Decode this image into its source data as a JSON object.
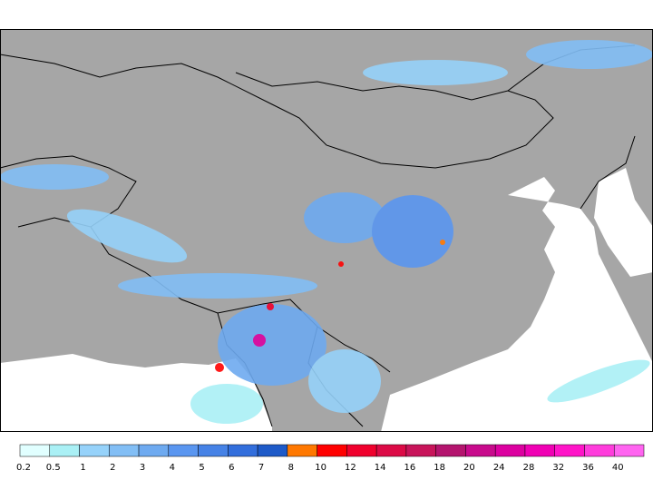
{
  "legend": {
    "labels": [
      0.2,
      0.5,
      1,
      2,
      3,
      4,
      5,
      6,
      7,
      8,
      10,
      12,
      14,
      16,
      18,
      20,
      24,
      28,
      32,
      36,
      40
    ],
    "colors": [
      "#e1ffff",
      "#aaf0f5",
      "#96d2fa",
      "#82bef5",
      "#6eaaf0",
      "#5a96f0",
      "#4682e6",
      "#326edc",
      "#1e5ac8",
      "#ff7800",
      "#ff0000",
      "#f0002d",
      "#dc0a46",
      "#c8145a",
      "#b4146e",
      "#c80a8c",
      "#dc00a0",
      "#f000b4",
      "#ff14c8",
      "#ff3cdc",
      "#ff64f0"
    ]
  }
}
